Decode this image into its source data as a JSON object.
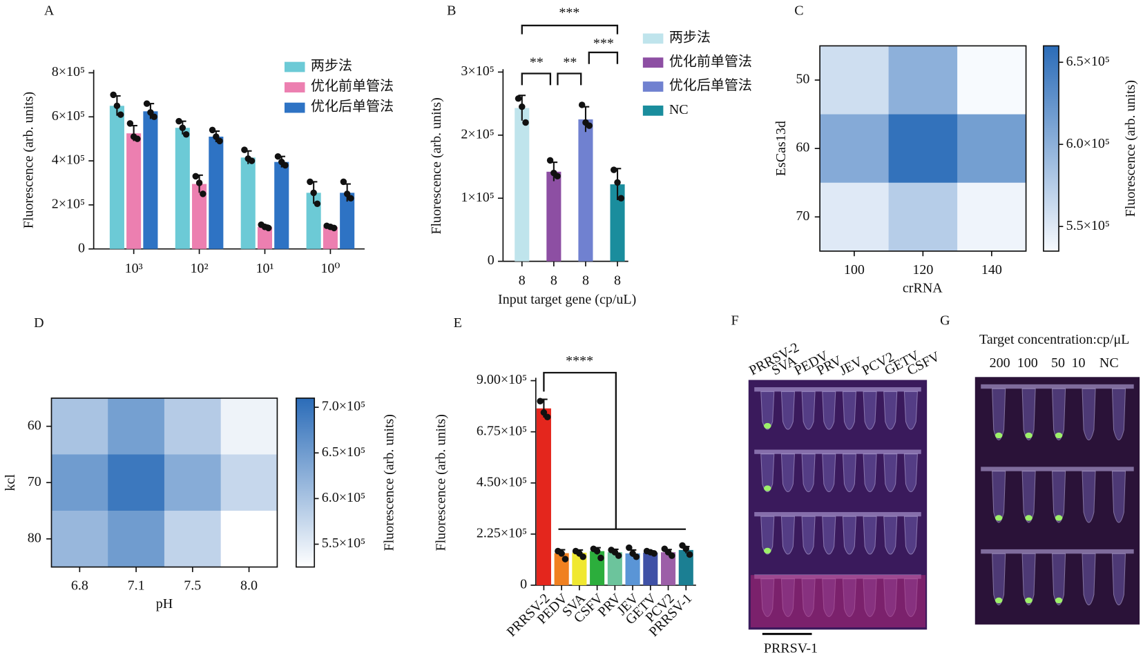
{
  "chart_data": [
    {
      "panel": "A",
      "type": "bar",
      "ylabel": "Fluorescence (arb. units)",
      "categories": [
        "10³",
        "10²",
        "10¹",
        "10⁰"
      ],
      "series": [
        {
          "name": "两步法",
          "color": "#6ccad6",
          "values": [
            650000,
            550000,
            415000,
            255000
          ],
          "errors": [
            45000,
            30000,
            30000,
            50000
          ],
          "points": [
            [
              700000,
              650000,
              610000
            ],
            [
              580000,
              550000,
              520000
            ],
            [
              450000,
              410000,
              400000
            ],
            [
              305000,
              255000,
              205000
            ]
          ]
        },
        {
          "name": "优化前单管法",
          "color": "#ec7fb0",
          "values": [
            525000,
            295000,
            100000,
            100000
          ],
          "errors": [
            35000,
            40000,
            8000,
            6000
          ],
          "points": [
            [
              570000,
              510000,
              500000
            ],
            [
              330000,
              300000,
              250000
            ],
            [
              110000,
              100000,
              95000
            ],
            [
              105000,
              100000,
              95000
            ]
          ]
        },
        {
          "name": "优化后单管法",
          "color": "#2e73c4",
          "values": [
            625000,
            510000,
            395000,
            255000
          ],
          "errors": [
            35000,
            25000,
            25000,
            40000
          ],
          "points": [
            [
              660000,
              620000,
              600000
            ],
            [
              540000,
              510000,
              490000
            ],
            [
              420000,
              395000,
              380000
            ],
            [
              305000,
              250000,
              230000
            ]
          ]
        }
      ],
      "ylim": [
        0,
        800000
      ],
      "yticks": [
        0,
        {
          "value": 200000,
          "label": "2×10⁵"
        },
        {
          "value": 400000,
          "label": "4×10⁵"
        },
        {
          "value": 600000,
          "label": "6×10⁵"
        },
        {
          "value": 800000,
          "label": "8×10⁵"
        }
      ]
    },
    {
      "panel": "B",
      "type": "bar",
      "ylabel": "Fluorescence (arb. units)",
      "xlabel": "Input target gene (cp/uL)",
      "categories": [
        "8",
        "8",
        "8",
        "8"
      ],
      "legend": [
        "两步法",
        "优化前单管法",
        "优化后单管法",
        "NC"
      ],
      "colors": [
        "#bfe4ec",
        "#8d4fa3",
        "#7081d0",
        "#1a8d9d"
      ],
      "values": [
        243000,
        142000,
        225000,
        122000
      ],
      "errors": [
        20000,
        15000,
        20000,
        25000
      ],
      "points": [
        [
          258000,
          245000,
          220000
        ],
        [
          160000,
          140000,
          135000
        ],
        [
          248000,
          220000,
          215000
        ],
        [
          145000,
          125000,
          100000
        ]
      ],
      "annotations": [
        "***",
        "**",
        "**",
        "***"
      ],
      "ylim": [
        0,
        300000
      ],
      "yticks": [
        0,
        {
          "value": 100000,
          "label": "1×10⁵"
        },
        {
          "value": 200000,
          "label": "2×10⁵"
        },
        {
          "value": 300000,
          "label": "3×10⁵"
        }
      ]
    },
    {
      "panel": "C",
      "type": "heatmap",
      "xlabel": "crRNA",
      "ylabel": "EsCas13d",
      "colorbar_label": "Fluorescence (arb. units)",
      "x": [
        100,
        120,
        140
      ],
      "y": [
        50,
        60,
        70
      ],
      "values": [
        [
          560000,
          600000,
          535000
        ],
        [
          605000,
          655000,
          615000
        ],
        [
          550000,
          575000,
          540000
        ]
      ],
      "colormap": [
        "#f7fafe",
        "#2b6cb8"
      ],
      "clim": [
        535000,
        660000
      ],
      "cticks": [
        {
          "value": 550000,
          "label": "5.5×10⁵"
        },
        {
          "value": 600000,
          "label": "6.0×10⁵"
        },
        {
          "value": 650000,
          "label": "6.5×10⁵"
        }
      ]
    },
    {
      "panel": "D",
      "type": "heatmap",
      "xlabel": "pH",
      "ylabel": "kcl",
      "colorbar_label": "Fluorescence (arb. units)",
      "x": [
        "6.8",
        "7.1",
        "7.5",
        "8.0"
      ],
      "y": [
        60,
        70,
        80
      ],
      "values": [
        [
          600000,
          645000,
          590000,
          540000
        ],
        [
          650000,
          695000,
          630000,
          575000
        ],
        [
          615000,
          650000,
          580000,
          525000
        ]
      ],
      "colormap": [
        "#ffffff",
        "#2b6cb8"
      ],
      "clim": [
        525000,
        710000
      ],
      "cticks": [
        {
          "value": 550000,
          "label": "5.5×10⁵"
        },
        {
          "value": 600000,
          "label": "6.0×10⁵"
        },
        {
          "value": 650000,
          "label": "6.5×10⁵"
        },
        {
          "value": 700000,
          "label": "7.0×10⁵"
        }
      ]
    },
    {
      "panel": "E",
      "type": "bar",
      "ylabel": "Fluorescence (arb. units)",
      "categories": [
        "PRRSV-2",
        "PEDV",
        "SVA",
        "CSFV",
        "PRV",
        "JEV",
        "GETV",
        "PCV2",
        "PRRSV-1"
      ],
      "colors": [
        "#e4261d",
        "#f08020",
        "#f0e830",
        "#2cae3c",
        "#6cc49c",
        "#5a95d6",
        "#3f51a6",
        "#9c5fa8",
        "#1b7f93"
      ],
      "values": [
        778000,
        141000,
        143000,
        150000,
        145000,
        140000,
        143000,
        145000,
        155000
      ],
      "errors": [
        40000,
        15000,
        12000,
        15000,
        13000,
        15000,
        8000,
        12000,
        15000
      ],
      "points": [
        [
          810000,
          760000,
          740000
        ],
        [
          150000,
          140000,
          115000
        ],
        [
          150000,
          140000,
          125000
        ],
        [
          160000,
          150000,
          120000
        ],
        [
          155000,
          145000,
          130000
        ],
        [
          165000,
          140000,
          125000
        ],
        [
          150000,
          145000,
          140000
        ],
        [
          160000,
          145000,
          130000
        ],
        [
          175000,
          160000,
          135000
        ]
      ],
      "annotations": [
        "****"
      ],
      "ylim": [
        0,
        900000
      ],
      "yticks": [
        0,
        {
          "value": 225000,
          "label": "2.25×10⁵"
        },
        {
          "value": 450000,
          "label": "4.50×10⁵"
        },
        {
          "value": 675000,
          "label": "6.75×10⁵"
        },
        {
          "value": 900000,
          "label": "9.00×10⁵"
        }
      ]
    }
  ],
  "images": {
    "F": {
      "panel": "F",
      "lanes": [
        "PRRSV-2",
        "SVA",
        "PEDV",
        "PRV",
        "JEV",
        "PCV2",
        "GETV",
        "CSFV"
      ],
      "bottom_label": "PRRSV-1"
    },
    "G": {
      "panel": "G",
      "title": "Target concentration:cp/μL",
      "lanes": [
        "200",
        "100",
        "50",
        "10",
        "NC"
      ]
    }
  }
}
